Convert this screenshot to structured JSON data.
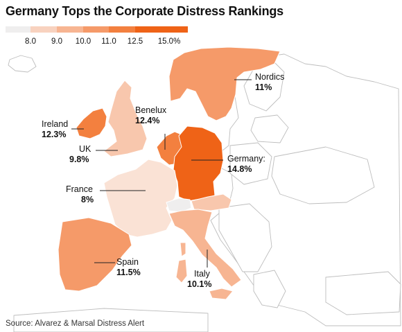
{
  "title": "Germany Tops the Corporate Distress Rankings",
  "source": "Source: Alvarez & Marsal Distress Alert",
  "legend": {
    "ticks": [
      "8.0",
      "9.0",
      "10.0",
      "11.0",
      "12.5",
      "15.0%"
    ],
    "colors": [
      "#efeeee",
      "#f8d2bf",
      "#f7b592",
      "#f59a69",
      "#f3803f",
      "#ef6317"
    ]
  },
  "countries": {
    "nordics": {
      "name": "Nordics",
      "value": "11%",
      "color": "#f59a69"
    },
    "ireland": {
      "name": "Ireland",
      "value": "12.3%",
      "color": "#f3803f"
    },
    "benelux": {
      "name": "Benelux",
      "value": "12.4%",
      "color": "#f3803f"
    },
    "uk": {
      "name": "UK",
      "value": "9.8%",
      "color": "#f8c7ad"
    },
    "germany": {
      "name": "Germany:",
      "value": "14.8%",
      "color": "#ef6317"
    },
    "france": {
      "name": "France",
      "value": "8%",
      "color": "#fae2d5"
    },
    "spain": {
      "name": "Spain",
      "value": "11.5%",
      "color": "#f59a69"
    },
    "italy": {
      "name": "Italy",
      "value": "10.1%",
      "color": "#f7b592"
    }
  }
}
